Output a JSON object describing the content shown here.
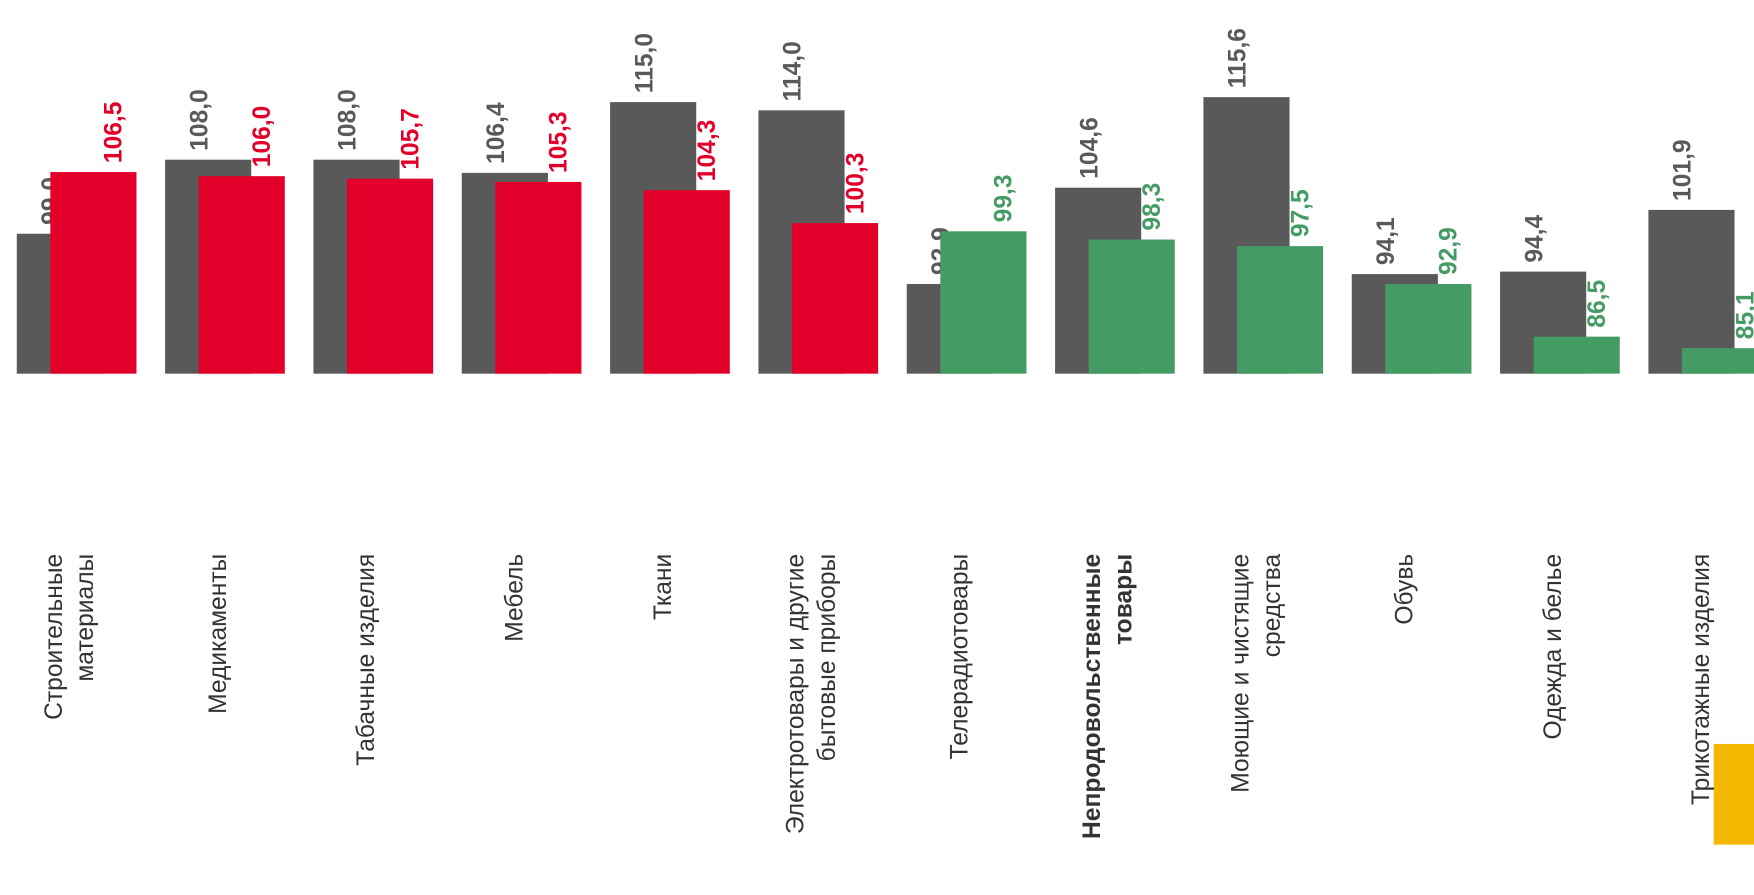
{
  "chart_data": {
    "type": "bar",
    "categories": [
      [
        "Строительные",
        "материалы"
      ],
      [
        "Медикаменты"
      ],
      [
        "Табачные изделия"
      ],
      [
        "Мебель"
      ],
      [
        "Ткани"
      ],
      [
        "Электротовары и другие",
        "бытовые приборы"
      ],
      [
        "Телерадиотовары"
      ],
      [
        "Непродовольственные",
        "товары"
      ],
      [
        "Моющие и чистящие",
        "средства"
      ],
      [
        "Обувь"
      ],
      [
        "Одежда и белье"
      ],
      [
        "Трикотажные изделия"
      ]
    ],
    "bold_category": 7,
    "series": [
      {
        "color": "#595959",
        "values": [
          99.0,
          108.0,
          108.0,
          106.4,
          115.0,
          114.0,
          92.9,
          104.6,
          115.6,
          94.1,
          94.4,
          101.9
        ],
        "value_labels": [
          "99,0",
          "108,0",
          "108,0",
          "106,4",
          "115,0",
          "114,0",
          "92,9",
          "104,6",
          "115,6",
          "94,1",
          "94,4",
          "101,9"
        ]
      },
      {
        "colors": [
          "#e2002a",
          "#e2002a",
          "#e2002a",
          "#e2002a",
          "#e2002a",
          "#e2002a",
          "#449b63",
          "#449b63",
          "#449b63",
          "#449b63",
          "#449b63",
          "#449b63"
        ],
        "values": [
          106.5,
          106.0,
          105.7,
          105.3,
          104.3,
          100.3,
          99.3,
          98.3,
          97.5,
          92.9,
          86.5,
          85.1
        ],
        "value_labels": [
          "106,5",
          "106,0",
          "105,7",
          "105,3",
          "104,3",
          "100,3",
          "99,3",
          "98,3",
          "97,5",
          "92,9",
          "86,5",
          "85,1"
        ]
      }
    ],
    "ylim": [
      82,
      127.4
    ]
  }
}
